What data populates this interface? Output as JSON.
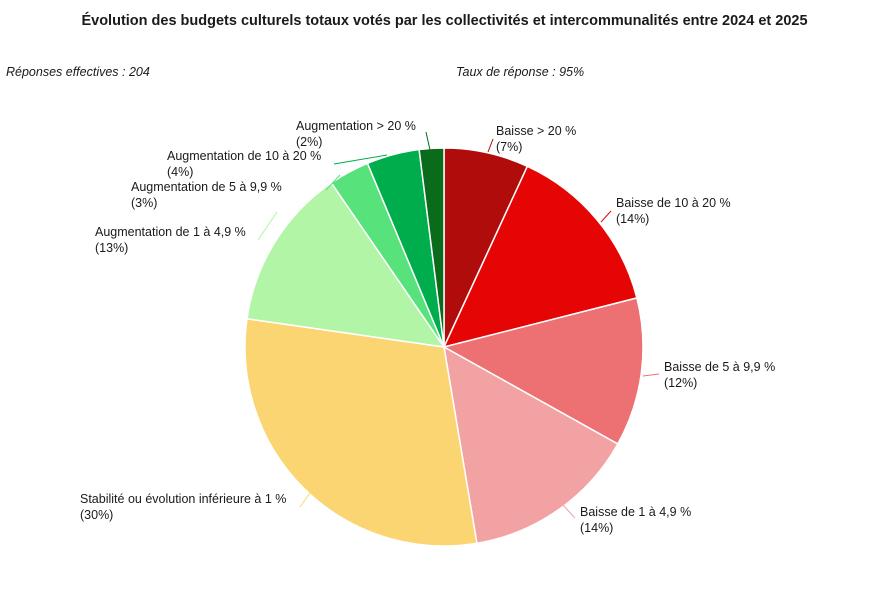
{
  "title": "Évolution des budgets culturels totaux votés par les collectivités et intercommunalités entre 2024 et 2025",
  "notes": {
    "responses": "Réponses effectives : 204",
    "rate": "Taux de réponse : 95%"
  },
  "chart_data": {
    "type": "pie",
    "title": "Évolution des budgets culturels totaux votés par les collectivités et intercommunalités entre 2024 et 2025",
    "start_angle_deg": 0,
    "direction": "clockwise",
    "slices": [
      {
        "label": "Baisse > 20 %",
        "percent_label": "(7%)",
        "value": 6.9,
        "color": "#b00c0c"
      },
      {
        "label": "Baisse de 10 à 20 %",
        "percent_label": "(14%)",
        "value": 14.2,
        "color": "#e60505"
      },
      {
        "label": "Baisse de 5 à 9,9 %",
        "percent_label": "(12%)",
        "value": 12.1,
        "color": "#ed7073"
      },
      {
        "label": "Baisse de 1 à 4,9 %",
        "percent_label": "(14%)",
        "value": 14.3,
        "color": "#f2a2a2"
      },
      {
        "label": "Stabilité ou évolution inférieure à 1 %",
        "percent_label": "(30%)",
        "value": 30.0,
        "color": "#fad572"
      },
      {
        "label": "Augmentation de 1 à 4,9 %",
        "percent_label": "(13%)",
        "value": 13.2,
        "color": "#b2f5a6"
      },
      {
        "label": "Augmentation de 5 à 9,9 %",
        "percent_label": "(3%)",
        "value": 3.3,
        "color": "#57e27b"
      },
      {
        "label": "Augmentation de 10 à 20 %",
        "percent_label": "(4%)",
        "value": 4.3,
        "color": "#00ad4c"
      },
      {
        "label": "Augmentation > 20 %",
        "percent_label": "(2%)",
        "value": 2.0,
        "color": "#0a6b1a"
      }
    ]
  }
}
